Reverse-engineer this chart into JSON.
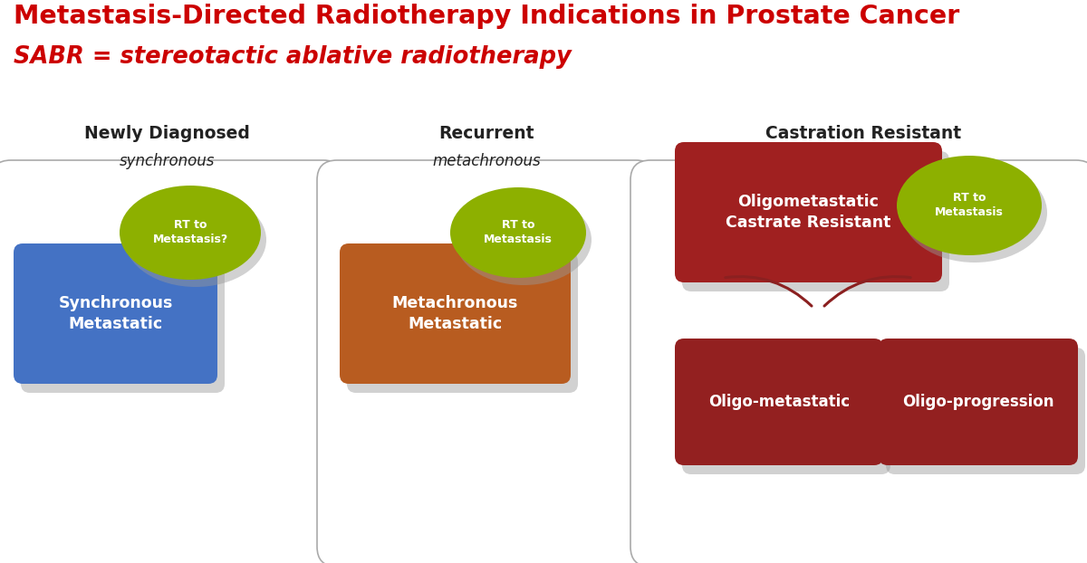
{
  "title_line1": "Metastasis-Directed Radiotherapy Indications in Prostate Cancer",
  "title_line2": "SABR = stereotactic ablative radiotherapy",
  "title_color": "#cc0000",
  "bg_color": "#ffffff",
  "panel1_header": "Newly Diagnosed",
  "panel1_subheader": "synchronous",
  "panel2_header": "Recurrent",
  "panel2_subheader": "metachronous",
  "panel3_header": "Castration Resistant",
  "box_blue_color": "#4472c4",
  "box_orange_color": "#b85c20",
  "box_red_color": "#a02020",
  "box_darkred_color": "#932020",
  "ellipse_green_color": "#8db000",
  "panel_border_color": "#aaaaaa",
  "brace_color": "#8b2020",
  "text_white": "#ffffff",
  "header_color": "#222222"
}
